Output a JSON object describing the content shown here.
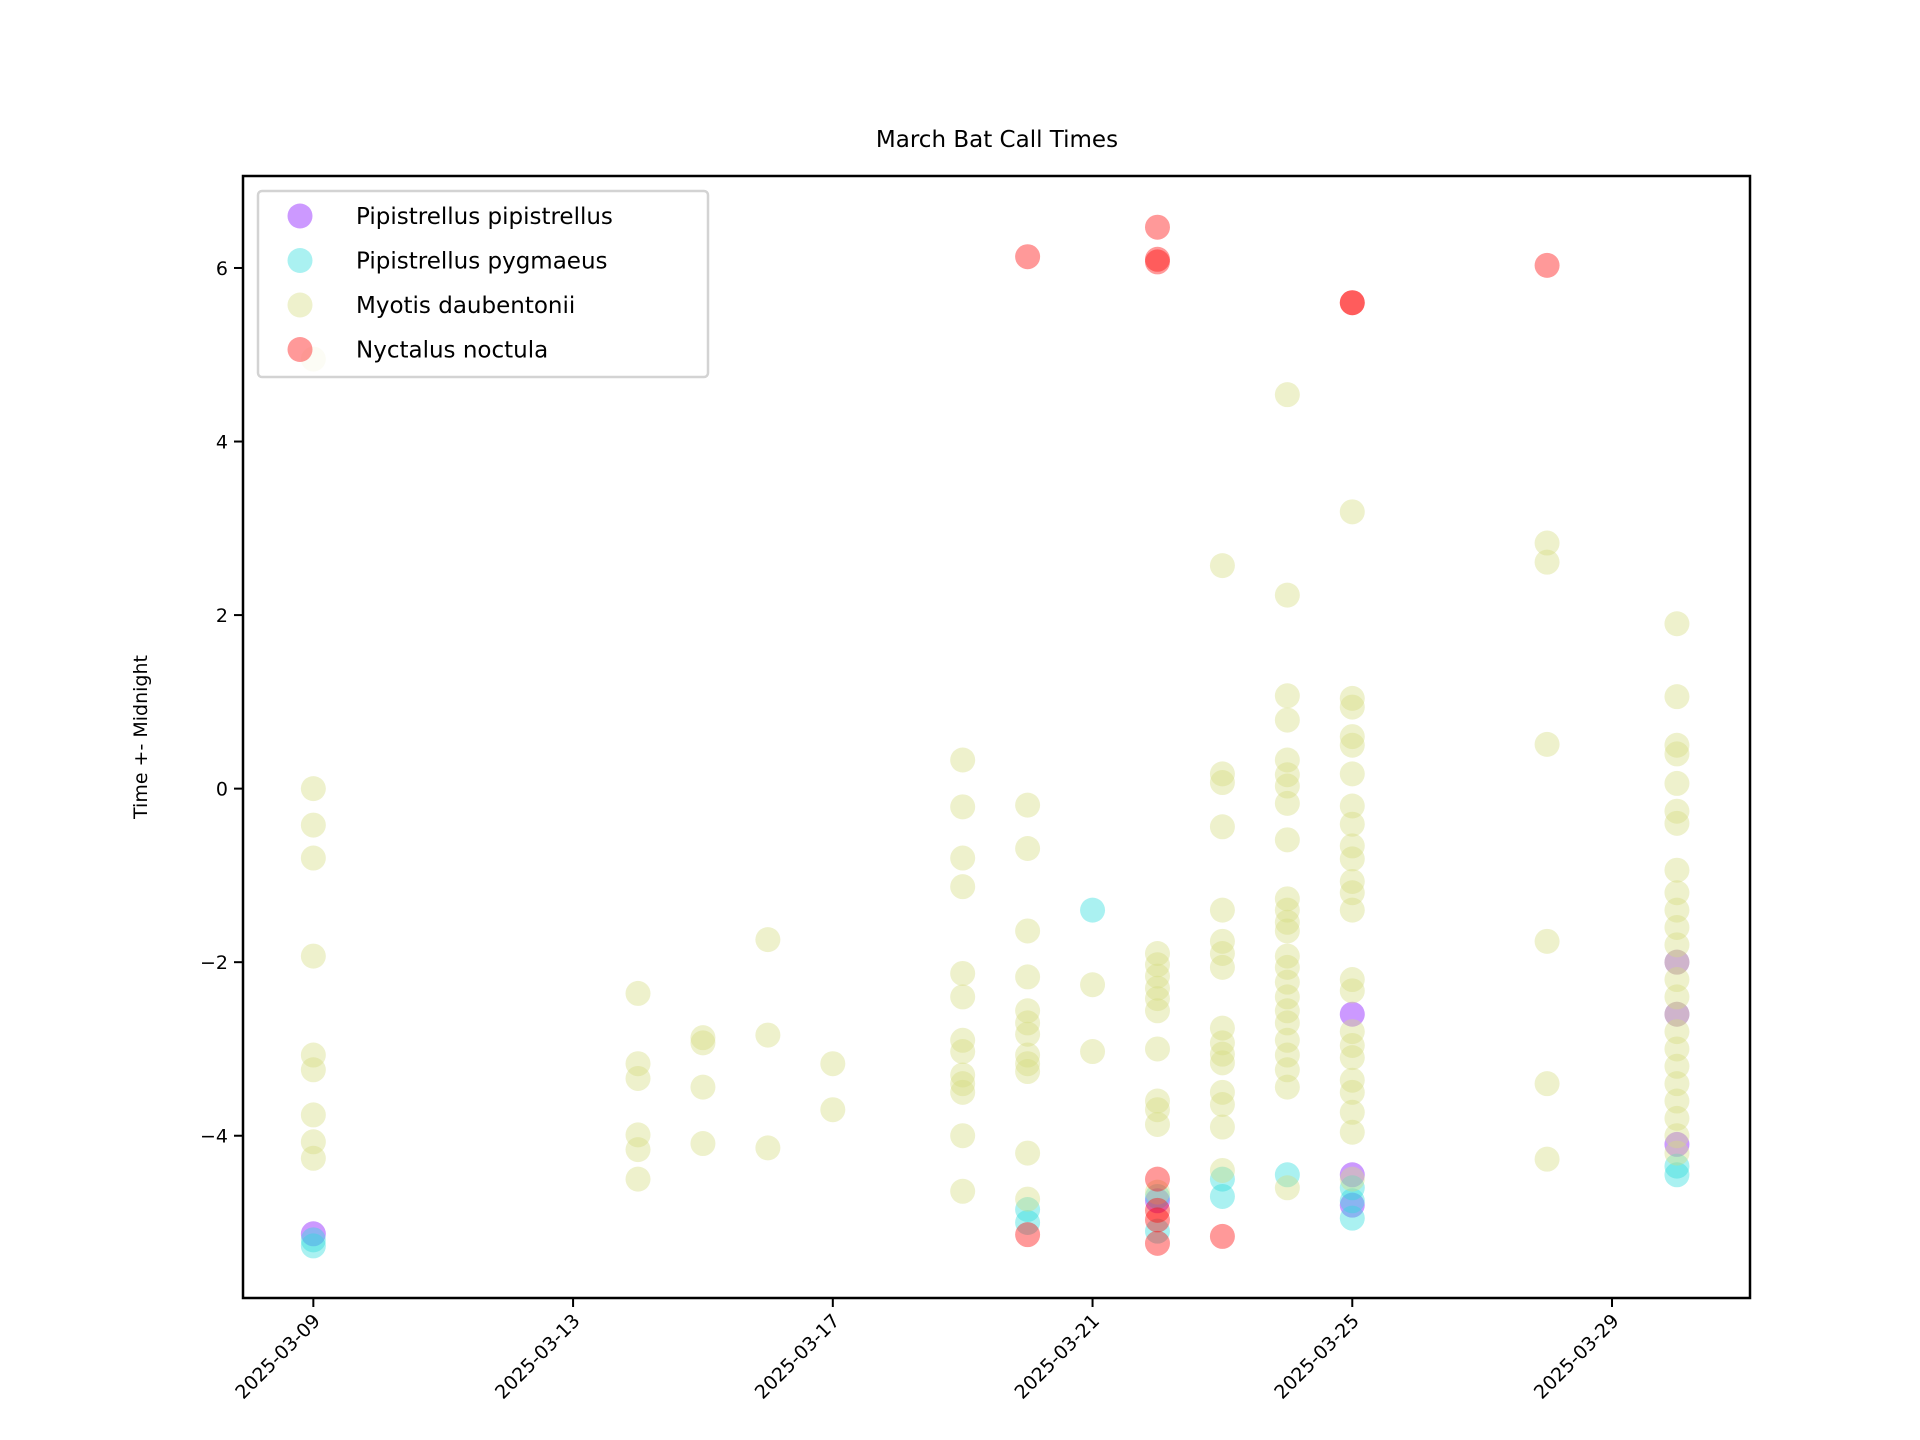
{
  "chart_data": {
    "type": "scatter",
    "title": "March Bat Call Times",
    "xlabel": "",
    "ylabel": "Time +- Midnight",
    "x_type": "date",
    "xlim": [
      "2025-03-07 22:00",
      "2025-03-31 03:00"
    ],
    "ylim": [
      -5.87,
      7.06
    ],
    "x_ticks": [
      "2025-03-09",
      "2025-03-13",
      "2025-03-17",
      "2025-03-21",
      "2025-03-25",
      "2025-03-29"
    ],
    "y_ticks": [
      -4,
      -2,
      0,
      2,
      4,
      6
    ],
    "y_tick_labels": [
      "−4",
      "−2",
      "0",
      "2",
      "4",
      "6"
    ],
    "grid": false,
    "legend_position": "top-left",
    "series": [
      {
        "name": "Pipistrellus pipistrellus",
        "color": "#8000ff",
        "alpha": 0.4,
        "points": [
          [
            "2025-03-09",
            -5.13
          ],
          [
            "2025-03-22",
            -4.75
          ],
          [
            "2025-03-25",
            -2.6
          ],
          [
            "2025-03-25",
            -4.45
          ],
          [
            "2025-03-25",
            -4.8
          ],
          [
            "2025-03-30",
            -2.0
          ],
          [
            "2025-03-30",
            -2.6
          ],
          [
            "2025-03-30",
            -4.1
          ]
        ]
      },
      {
        "name": "Pipistrellus pygmaeus",
        "color": "#2adddd",
        "alpha": 0.4,
        "points": [
          [
            "2025-03-09",
            -5.27
          ],
          [
            "2025-03-09",
            -5.2
          ],
          [
            "2025-03-20",
            -4.85
          ],
          [
            "2025-03-20",
            -5.0
          ],
          [
            "2025-03-21",
            -1.4
          ],
          [
            "2025-03-22",
            -4.7
          ],
          [
            "2025-03-22",
            -5.1
          ],
          [
            "2025-03-23",
            -4.5
          ],
          [
            "2025-03-23",
            -4.7
          ],
          [
            "2025-03-24",
            -4.45
          ],
          [
            "2025-03-25",
            -4.6
          ],
          [
            "2025-03-25",
            -4.75
          ],
          [
            "2025-03-25",
            -4.95
          ],
          [
            "2025-03-30",
            -4.35
          ],
          [
            "2025-03-30",
            -4.45
          ]
        ]
      },
      {
        "name": "Myotis daubentonii",
        "color": "#d4dd80",
        "alpha": 0.4,
        "points": [
          [
            "2025-03-09",
            4.95
          ],
          [
            "2025-03-09",
            0.0
          ],
          [
            "2025-03-09",
            -0.42
          ],
          [
            "2025-03-09",
            -0.8
          ],
          [
            "2025-03-09",
            -1.93
          ],
          [
            "2025-03-09",
            -3.07
          ],
          [
            "2025-03-09",
            -3.24
          ],
          [
            "2025-03-09",
            -3.76
          ],
          [
            "2025-03-09",
            -4.07
          ],
          [
            "2025-03-09",
            -4.26
          ],
          [
            "2025-03-14",
            -2.36
          ],
          [
            "2025-03-14",
            -3.17
          ],
          [
            "2025-03-14",
            -3.34
          ],
          [
            "2025-03-14",
            -3.99
          ],
          [
            "2025-03-14",
            -4.16
          ],
          [
            "2025-03-14",
            -4.5
          ],
          [
            "2025-03-15",
            -2.87
          ],
          [
            "2025-03-15",
            -2.93
          ],
          [
            "2025-03-15",
            -3.44
          ],
          [
            "2025-03-15",
            -4.09
          ],
          [
            "2025-03-16",
            -1.74
          ],
          [
            "2025-03-16",
            -2.84
          ],
          [
            "2025-03-16",
            -4.14
          ],
          [
            "2025-03-17",
            -3.17
          ],
          [
            "2025-03-17",
            -3.7
          ],
          [
            "2025-03-19",
            0.33
          ],
          [
            "2025-03-19",
            -0.21
          ],
          [
            "2025-03-19",
            -0.8
          ],
          [
            "2025-03-19",
            -1.13
          ],
          [
            "2025-03-19",
            -2.13
          ],
          [
            "2025-03-19",
            -2.4
          ],
          [
            "2025-03-19",
            -2.9
          ],
          [
            "2025-03-19",
            -3.03
          ],
          [
            "2025-03-19",
            -3.3
          ],
          [
            "2025-03-19",
            -3.4
          ],
          [
            "2025-03-19",
            -3.5
          ],
          [
            "2025-03-19",
            -4.0
          ],
          [
            "2025-03-19",
            -4.64
          ],
          [
            "2025-03-20",
            -0.19
          ],
          [
            "2025-03-20",
            -0.69
          ],
          [
            "2025-03-20",
            -1.64
          ],
          [
            "2025-03-20",
            -2.17
          ],
          [
            "2025-03-20",
            -2.56
          ],
          [
            "2025-03-20",
            -2.7
          ],
          [
            "2025-03-20",
            -2.83
          ],
          [
            "2025-03-20",
            -3.07
          ],
          [
            "2025-03-20",
            -3.17
          ],
          [
            "2025-03-20",
            -3.26
          ],
          [
            "2025-03-20",
            -4.2
          ],
          [
            "2025-03-20",
            -4.73
          ],
          [
            "2025-03-21",
            -2.26
          ],
          [
            "2025-03-21",
            -3.03
          ],
          [
            "2025-03-22",
            -1.9
          ],
          [
            "2025-03-22",
            -2.03
          ],
          [
            "2025-03-22",
            -2.16
          ],
          [
            "2025-03-22",
            -2.3
          ],
          [
            "2025-03-22",
            -2.42
          ],
          [
            "2025-03-22",
            -2.56
          ],
          [
            "2025-03-22",
            -3.0
          ],
          [
            "2025-03-22",
            -3.6
          ],
          [
            "2025-03-22",
            -3.7
          ],
          [
            "2025-03-22",
            -3.87
          ],
          [
            "2025-03-22",
            -4.65
          ],
          [
            "2025-03-23",
            2.57
          ],
          [
            "2025-03-23",
            0.17
          ],
          [
            "2025-03-23",
            0.07
          ],
          [
            "2025-03-23",
            -0.44
          ],
          [
            "2025-03-23",
            -1.4
          ],
          [
            "2025-03-23",
            -1.76
          ],
          [
            "2025-03-23",
            -1.9
          ],
          [
            "2025-03-23",
            -2.06
          ],
          [
            "2025-03-23",
            -2.76
          ],
          [
            "2025-03-23",
            -2.93
          ],
          [
            "2025-03-23",
            -3.06
          ],
          [
            "2025-03-23",
            -3.16
          ],
          [
            "2025-03-23",
            -3.5
          ],
          [
            "2025-03-23",
            -3.64
          ],
          [
            "2025-03-23",
            -3.9
          ],
          [
            "2025-03-23",
            -4.4
          ],
          [
            "2025-03-24",
            4.54
          ],
          [
            "2025-03-24",
            2.23
          ],
          [
            "2025-03-24",
            1.07
          ],
          [
            "2025-03-24",
            0.79
          ],
          [
            "2025-03-24",
            0.33
          ],
          [
            "2025-03-24",
            0.16
          ],
          [
            "2025-03-24",
            0.03
          ],
          [
            "2025-03-24",
            -0.17
          ],
          [
            "2025-03-24",
            -0.59
          ],
          [
            "2025-03-24",
            -1.27
          ],
          [
            "2025-03-24",
            -1.4
          ],
          [
            "2025-03-24",
            -1.54
          ],
          [
            "2025-03-24",
            -1.64
          ],
          [
            "2025-03-24",
            -1.93
          ],
          [
            "2025-03-24",
            -2.06
          ],
          [
            "2025-03-24",
            -2.23
          ],
          [
            "2025-03-24",
            -2.4
          ],
          [
            "2025-03-24",
            -2.56
          ],
          [
            "2025-03-24",
            -2.7
          ],
          [
            "2025-03-24",
            -2.9
          ],
          [
            "2025-03-24",
            -3.07
          ],
          [
            "2025-03-24",
            -3.24
          ],
          [
            "2025-03-24",
            -3.44
          ],
          [
            "2025-03-24",
            -4.6
          ],
          [
            "2025-03-25",
            3.19
          ],
          [
            "2025-03-25",
            1.04
          ],
          [
            "2025-03-25",
            0.94
          ],
          [
            "2025-03-25",
            0.6
          ],
          [
            "2025-03-25",
            0.5
          ],
          [
            "2025-03-25",
            0.17
          ],
          [
            "2025-03-25",
            -0.2
          ],
          [
            "2025-03-25",
            -0.41
          ],
          [
            "2025-03-25",
            -0.66
          ],
          [
            "2025-03-25",
            -0.81
          ],
          [
            "2025-03-25",
            -1.07
          ],
          [
            "2025-03-25",
            -1.2
          ],
          [
            "2025-03-25",
            -1.4
          ],
          [
            "2025-03-25",
            -2.2
          ],
          [
            "2025-03-25",
            -2.33
          ],
          [
            "2025-03-25",
            -2.8
          ],
          [
            "2025-03-25",
            -2.96
          ],
          [
            "2025-03-25",
            -3.1
          ],
          [
            "2025-03-25",
            -3.36
          ],
          [
            "2025-03-25",
            -3.5
          ],
          [
            "2025-03-25",
            -3.73
          ],
          [
            "2025-03-25",
            -3.96
          ],
          [
            "2025-03-25",
            -4.5
          ],
          [
            "2025-03-28",
            2.83
          ],
          [
            "2025-03-28",
            2.61
          ],
          [
            "2025-03-28",
            0.51
          ],
          [
            "2025-03-28",
            -1.76
          ],
          [
            "2025-03-28",
            -3.4
          ],
          [
            "2025-03-28",
            -4.27
          ],
          [
            "2025-03-30",
            1.9
          ],
          [
            "2025-03-30",
            1.06
          ],
          [
            "2025-03-30",
            0.5
          ],
          [
            "2025-03-30",
            0.4
          ],
          [
            "2025-03-30",
            0.06
          ],
          [
            "2025-03-30",
            -0.26
          ],
          [
            "2025-03-30",
            -0.4
          ],
          [
            "2025-03-30",
            -0.94
          ],
          [
            "2025-03-30",
            -1.2
          ],
          [
            "2025-03-30",
            -1.4
          ],
          [
            "2025-03-30",
            -1.6
          ],
          [
            "2025-03-30",
            -1.8
          ],
          [
            "2025-03-30",
            -2.0
          ],
          [
            "2025-03-30",
            -2.2
          ],
          [
            "2025-03-30",
            -2.4
          ],
          [
            "2025-03-30",
            -2.6
          ],
          [
            "2025-03-30",
            -2.8
          ],
          [
            "2025-03-30",
            -3.0
          ],
          [
            "2025-03-30",
            -3.2
          ],
          [
            "2025-03-30",
            -3.4
          ],
          [
            "2025-03-30",
            -3.6
          ],
          [
            "2025-03-30",
            -3.8
          ],
          [
            "2025-03-30",
            -4.0
          ],
          [
            "2025-03-30",
            -4.2
          ]
        ]
      },
      {
        "name": "Nyctalus noctula",
        "color": "#ff0000",
        "alpha": 0.4,
        "points": [
          [
            "2025-03-20",
            6.13
          ],
          [
            "2025-03-20",
            -5.14
          ],
          [
            "2025-03-22",
            6.47
          ],
          [
            "2025-03-22",
            6.1
          ],
          [
            "2025-03-22",
            6.07
          ],
          [
            "2025-03-22",
            -4.5
          ],
          [
            "2025-03-22",
            -4.86
          ],
          [
            "2025-03-22",
            -4.97
          ],
          [
            "2025-03-22",
            -5.24
          ],
          [
            "2025-03-23",
            -5.16
          ],
          [
            "2025-03-25",
            5.6
          ],
          [
            "2025-03-25",
            5.6
          ],
          [
            "2025-03-28",
            6.03
          ]
        ]
      }
    ]
  }
}
